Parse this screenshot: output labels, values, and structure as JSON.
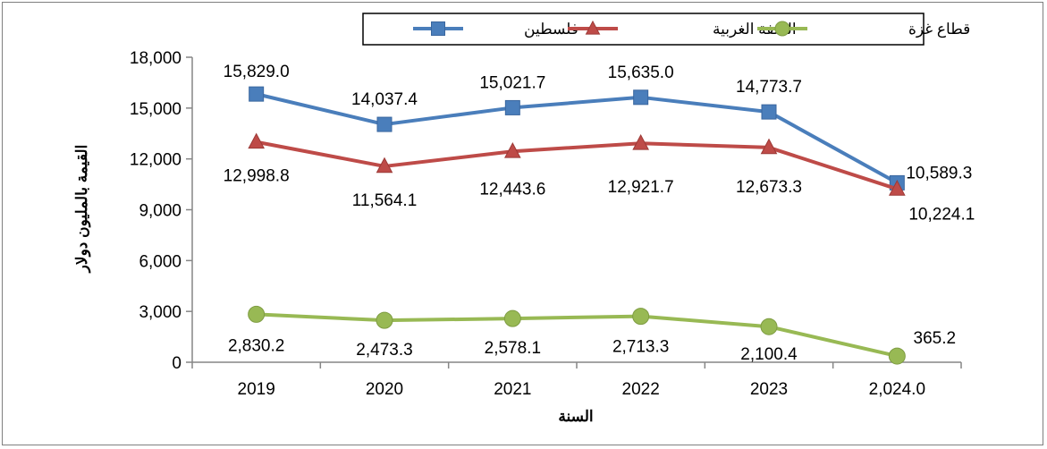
{
  "chart_data": {
    "type": "line",
    "categories": [
      "2019",
      "2020",
      "2021",
      "2022",
      "2023",
      "2,024.0"
    ],
    "xlabel": "السنة",
    "ylabel": "القيمة بالمليون دولار",
    "ylim": [
      0,
      18000
    ],
    "yticks": [
      "0",
      "3,000",
      "6,000",
      "9,000",
      "12,000",
      "15,000",
      "18,000"
    ],
    "grid": false,
    "legend_position": "top",
    "series": [
      {
        "name": "فلسطين",
        "color": "#4a7ebb",
        "marker": "square",
        "values": [
          15829.0,
          14037.4,
          15021.7,
          15635.0,
          14773.7,
          10589.3
        ],
        "labels": [
          "15,829.0",
          "14,037.4",
          "15,021.7",
          "15,635.0",
          "14,773.7",
          "10,589.3"
        ]
      },
      {
        "name": "الضفة الغربية",
        "color": "#be4b48",
        "marker": "triangle",
        "values": [
          12998.8,
          11564.1,
          12443.6,
          12921.7,
          12673.3,
          10224.1
        ],
        "labels": [
          "12,998.8",
          "11,564.1",
          "12,443.6",
          "12,921.7",
          "12,673.3",
          "10,224.1"
        ]
      },
      {
        "name": "قطاع غزة",
        "color": "#98b954",
        "marker": "circle",
        "values": [
          2830.2,
          2473.3,
          2578.1,
          2713.3,
          2100.4,
          365.2
        ],
        "labels": [
          "2,830.2",
          "2,473.3",
          "2,578.1",
          "2,713.3",
          "2,100.4",
          "365.2"
        ]
      }
    ]
  }
}
